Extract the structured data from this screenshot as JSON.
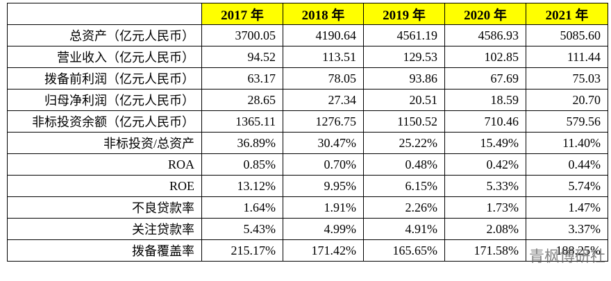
{
  "table": {
    "header": [
      "",
      "2017 年",
      "2018 年",
      "2019 年",
      "2020 年",
      "2021 年"
    ],
    "rows": [
      [
        "总资产（亿元人民币）",
        "3700.05",
        "4190.64",
        "4561.19",
        "4586.93",
        "5085.60"
      ],
      [
        "营业收入（亿元人民币）",
        "94.52",
        "113.51",
        "129.53",
        "102.85",
        "111.44"
      ],
      [
        "拨备前利润（亿元人民币）",
        "63.17",
        "78.05",
        "93.86",
        "67.69",
        "75.03"
      ],
      [
        "归母净利润（亿元人民币）",
        "28.65",
        "27.34",
        "20.51",
        "18.59",
        "20.70"
      ],
      [
        "非标投资余额（亿元人民币）",
        "1365.11",
        "1276.75",
        "1150.52",
        "710.46",
        "579.56"
      ],
      [
        "非标投资/总资产",
        "36.89%",
        "30.47%",
        "25.22%",
        "15.49%",
        "11.40%"
      ],
      [
        "ROA",
        "0.85%",
        "0.70%",
        "0.48%",
        "0.42%",
        "0.44%"
      ],
      [
        "ROE",
        "13.12%",
        "9.95%",
        "6.15%",
        "5.33%",
        "5.74%"
      ],
      [
        "不良贷款率",
        "1.64%",
        "1.91%",
        "2.26%",
        "1.73%",
        "1.47%"
      ],
      [
        "关注贷款率",
        "5.43%",
        "4.99%",
        "4.91%",
        "2.08%",
        "3.37%"
      ],
      [
        "拨备覆盖率",
        "215.17%",
        "171.42%",
        "165.65%",
        "171.58%",
        "188.25%"
      ]
    ]
  },
  "watermark": "青枫博研社"
}
